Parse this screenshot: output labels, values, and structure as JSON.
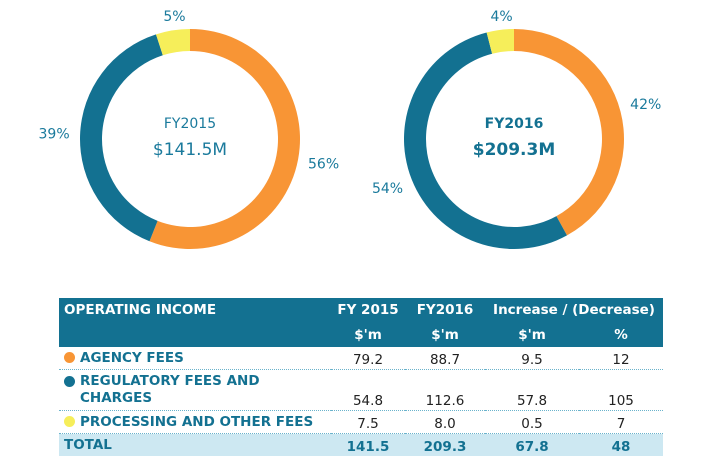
{
  "chart_data": [
    {
      "type": "pie",
      "variant": "donut",
      "center_label": "FY2015",
      "center_value": "$141.5M",
      "center_bold": false,
      "slices": [
        {
          "name": "Agency fees",
          "value": 56,
          "label": "56%",
          "color": "#f89535"
        },
        {
          "name": "Regulatory fees and charges",
          "value": 39,
          "label": "39%",
          "color": "#137191"
        },
        {
          "name": "Processing and other fees",
          "value": 5,
          "label": "5%",
          "color": "#f6ee5a"
        }
      ]
    },
    {
      "type": "pie",
      "variant": "donut",
      "center_label": "FY2016",
      "center_value": "$209.3M",
      "center_bold": true,
      "slices": [
        {
          "name": "Agency fees",
          "value": 42,
          "label": "42%",
          "color": "#f89535"
        },
        {
          "name": "Regulatory fees and charges",
          "value": 54,
          "label": "54%",
          "color": "#137191"
        },
        {
          "name": "Processing and other fees",
          "value": 4,
          "label": "4%",
          "color": "#f6ee5a"
        }
      ]
    },
    {
      "type": "table",
      "header": {
        "title": "OPERATING INCOME",
        "columns": [
          "FY 2015",
          "FY2016",
          "Increase / (Decrease)"
        ],
        "units": [
          "$'m",
          "$'m",
          "$'m",
          "%"
        ]
      },
      "rows": [
        {
          "label_lines": [
            "AGENCY FEES"
          ],
          "color": "#f89535",
          "values": [
            "79.2",
            "88.7",
            "9.5",
            "12"
          ]
        },
        {
          "label_lines": [
            "REGULATORY FEES AND",
            "CHARGES"
          ],
          "color": "#137191",
          "values": [
            "54.8",
            "112.6",
            "57.8",
            "105"
          ]
        },
        {
          "label_lines": [
            "PROCESSING AND OTHER FEES"
          ],
          "color": "#f6ee5a",
          "values": [
            "7.5",
            "8.0",
            "0.5",
            "7"
          ]
        }
      ],
      "total": {
        "label": "TOTAL",
        "values": [
          "141.5",
          "209.3",
          "67.8",
          "48"
        ]
      }
    }
  ]
}
